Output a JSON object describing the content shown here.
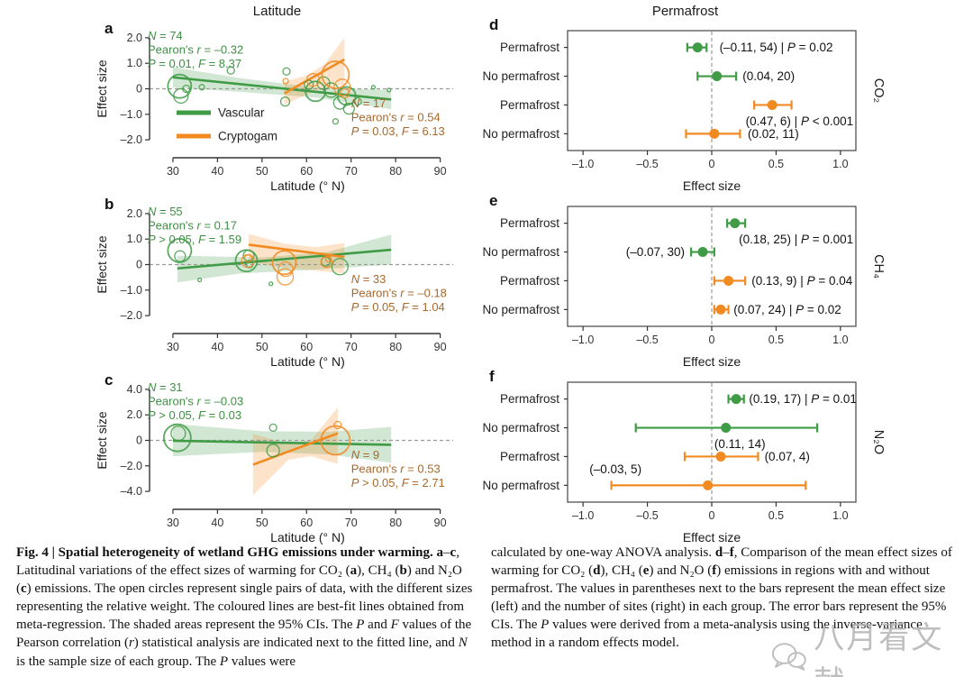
{
  "figure": {
    "column_titles": {
      "left": "Latitude",
      "right": "Permafrost"
    },
    "caption_left_html": "<b>Fig. 4 | Spatial heterogeneity of wetland GHG emissions under warming.</b> <b>a</b>–<b>c</b>, Latitudinal variations of the effect sizes of warming for CO₂ (<b>a</b>), CH₄ (<b>b</b>) and N₂O (<b>c</b>) emissions. The open circles represent single pairs of data, with the different sizes representing the relative weight. The coloured lines are best-fit lines obtained from meta-regression. The shaded areas represent the 95% CIs. The <i>P</i> and <i>F</i> values of the Pearson correlation (<i>r</i>) statistical analysis are indicated next to the fitted line, and <i>N</i> is the sample size of each group. The <i>P</i> values were",
    "caption_right_html": "calculated by one-way ANOVA analysis. <b>d</b>–<b>f</b>, Comparison of the mean effect sizes of warming for CO₂ (<b>d</b>), CH₄ (<b>e</b>) and N₂O (<b>f</b>) emissions in regions with and without permafrost. The values in parentheses next to the bars represent the mean effect size (left) and the number of sites (right) in each group. The error bars represent the 95% CIs. The <i>P</i> values were derived from a meta-analysis using the inverse-variance method in a random effects model.",
    "watermark_text": "八月看文献"
  },
  "colors": {
    "green": "#3f9b45",
    "orange": "#f28a22",
    "stats_green": "#3f8f44",
    "stats_orange": "#a8682b",
    "axis": "#333333",
    "dashed": "#9a9a9a",
    "text": "#1a1a1a",
    "band_opacity": 0.24
  },
  "chart_data": [
    {
      "id": "a",
      "type": "scatter",
      "panel_label": "a",
      "xlabel": "Latitude (° N)",
      "ylabel": "Effect size",
      "xlim": [
        28.8,
        91.7
      ],
      "ylim": [
        -2.35,
        2.35
      ],
      "xticks": [
        [
          30,
          "30"
        ],
        [
          40,
          "40"
        ],
        [
          50,
          "50"
        ],
        [
          60,
          "60"
        ],
        [
          70,
          "70"
        ],
        [
          80,
          "80"
        ],
        [
          90,
          "90"
        ]
      ],
      "yticks": [
        [
          2,
          "2.0"
        ],
        [
          1,
          "1.0"
        ],
        [
          0,
          "0"
        ],
        [
          -1,
          "–1.0"
        ],
        [
          -2,
          "–2.0"
        ]
      ],
      "series": [
        {
          "name": "Vascular",
          "color": "green",
          "line": [
            [
              30,
              0.45
            ],
            [
              79,
              -0.42
            ]
          ],
          "band": [
            [
              30,
              0.85
            ],
            [
              45,
              0.42
            ],
            [
              62,
              0.05
            ],
            [
              79,
              -0.05
            ],
            [
              79,
              -0.8
            ],
            [
              62,
              -0.34
            ],
            [
              45,
              -0.12
            ],
            [
              30,
              0.05
            ]
          ],
          "points": [
            [
              31.5,
              0.1,
              13
            ],
            [
              31.8,
              -0.28,
              8
            ],
            [
              33,
              0,
              4
            ],
            [
              36.5,
              0.06,
              3
            ],
            [
              43,
              0.72,
              4
            ],
            [
              55.5,
              0.68,
              4
            ],
            [
              55.2,
              -0.5,
              5
            ],
            [
              60.5,
              0.16,
              5
            ],
            [
              62,
              -0.1,
              11
            ],
            [
              63.8,
              0.22,
              7
            ],
            [
              65.5,
              -0.05,
              8
            ],
            [
              66.5,
              -1.28,
              3
            ],
            [
              67.5,
              -0.55,
              7
            ],
            [
              69,
              -0.28,
              10
            ],
            [
              69.5,
              -0.78,
              6
            ],
            [
              71.5,
              -0.5,
              4
            ],
            [
              75,
              0.06,
              2
            ],
            [
              78.5,
              -0.05,
              2
            ]
          ]
        },
        {
          "name": "Cryptogam",
          "color": "orange",
          "line": [
            [
              55,
              -0.18
            ],
            [
              68.5,
              1.15
            ]
          ],
          "band": [
            [
              55,
              0.28
            ],
            [
              60,
              0.52
            ],
            [
              64,
              0.95
            ],
            [
              68.5,
              2.0
            ],
            [
              68.5,
              0.18
            ],
            [
              62,
              -0.08
            ],
            [
              55,
              -0.62
            ]
          ],
          "points": [
            [
              61.5,
              0.35,
              7
            ],
            [
              66.5,
              0.55,
              15
            ],
            [
              68,
              0.06,
              9
            ],
            [
              68.6,
              -0.18,
              5
            ],
            [
              55.3,
              0.3,
              3
            ]
          ]
        }
      ],
      "stats": [
        {
          "color": "stats_green",
          "pos": "top-left",
          "lines": [
            "N = 74",
            "Pearon's r = –0.32",
            "P = 0.01, F = 8.37"
          ]
        },
        {
          "color": "stats_orange",
          "pos": "bottom-right",
          "lines": [
            "N = 17",
            "Pearon's r = 0.54",
            "P = 0.03, F = 6.13"
          ]
        }
      ],
      "legend": {
        "items": [
          {
            "label": "Vascular",
            "color": "green"
          },
          {
            "label": "Cryptogam",
            "color": "orange"
          }
        ]
      }
    },
    {
      "id": "b",
      "type": "scatter",
      "panel_label": "b",
      "xlabel": "Latitude (° N)",
      "ylabel": "Effect size",
      "xlim": [
        28.8,
        91.7
      ],
      "ylim": [
        -2.35,
        2.35
      ],
      "xticks": [
        [
          30,
          "30"
        ],
        [
          40,
          "40"
        ],
        [
          50,
          "50"
        ],
        [
          60,
          "60"
        ],
        [
          70,
          "70"
        ],
        [
          80,
          "80"
        ],
        [
          90,
          "90"
        ]
      ],
      "yticks": [
        [
          2,
          "2.0"
        ],
        [
          1,
          "1.0"
        ],
        [
          0,
          "0"
        ],
        [
          -1,
          "–1.0"
        ],
        [
          -2,
          "–2.0"
        ]
      ],
      "series": [
        {
          "name": "Vascular",
          "color": "green",
          "line": [
            [
              31,
              -0.15
            ],
            [
              79,
              0.58
            ]
          ],
          "band": [
            [
              31,
              0.35
            ],
            [
              50,
              0.28
            ],
            [
              65,
              0.5
            ],
            [
              79,
              1.18
            ],
            [
              79,
              0
            ],
            [
              60,
              -0.22
            ],
            [
              45,
              -0.35
            ],
            [
              31,
              -0.7
            ]
          ],
          "points": [
            [
              31.5,
              0.55,
              13
            ],
            [
              31.6,
              0.33,
              6
            ],
            [
              46.5,
              0.15,
              12
            ],
            [
              47,
              0.35,
              6
            ],
            [
              47.2,
              0.02,
              4
            ],
            [
              64.3,
              0.12,
              5
            ],
            [
              67.5,
              -0.08,
              9
            ],
            [
              36,
              -0.6,
              2
            ],
            [
              52,
              -0.75,
              2
            ]
          ]
        },
        {
          "name": "Cryptogam",
          "color": "orange",
          "line": [
            [
              47,
              0.78
            ],
            [
              68.5,
              0.3
            ]
          ],
          "band": [
            [
              47,
              1.2
            ],
            [
              55,
              0.82
            ],
            [
              62,
              0.68
            ],
            [
              68.5,
              0.85
            ],
            [
              68.5,
              -0.35
            ],
            [
              60,
              -0.2
            ],
            [
              52,
              -0.06
            ],
            [
              47,
              0.15
            ]
          ],
          "points": [
            [
              46.8,
              0.14,
              7
            ],
            [
              46.9,
              0.24,
              4
            ],
            [
              55,
              0.08,
              13
            ],
            [
              55.3,
              -0.18,
              8
            ],
            [
              55.2,
              -0.48,
              9
            ],
            [
              64.5,
              0.1,
              6
            ],
            [
              64.9,
              0.22,
              3
            ]
          ]
        }
      ],
      "stats": [
        {
          "color": "stats_green",
          "pos": "top-left",
          "lines": [
            "N = 55",
            "Pearon's r = 0.17",
            "P > 0.05, F = 1.59"
          ]
        },
        {
          "color": "stats_orange",
          "pos": "bottom-right",
          "lines": [
            "N = 33",
            "Pearon's r = –0.18",
            "P = 0.05, F = 1.04"
          ]
        }
      ]
    },
    {
      "id": "c",
      "type": "scatter",
      "panel_label": "c",
      "xlabel": "Latitude (° N)",
      "ylabel": "Effect size",
      "xlim": [
        28.8,
        91.7
      ],
      "ylim": [
        -4.7,
        4.7
      ],
      "xticks": [
        [
          30,
          "30"
        ],
        [
          40,
          "40"
        ],
        [
          50,
          "50"
        ],
        [
          60,
          "60"
        ],
        [
          70,
          "70"
        ],
        [
          80,
          "80"
        ],
        [
          90,
          "90"
        ]
      ],
      "yticks": [
        [
          4,
          "4.0"
        ],
        [
          2,
          "2.0"
        ],
        [
          0,
          "0"
        ],
        [
          -2,
          "–2.0"
        ],
        [
          -4,
          "–4.0"
        ]
      ],
      "series": [
        {
          "name": "Vascular",
          "color": "green",
          "line": [
            [
              30,
              -0.03
            ],
            [
              79,
              -0.35
            ]
          ],
          "band": [
            [
              30,
              1.3
            ],
            [
              50,
              0.72
            ],
            [
              65,
              0.68
            ],
            [
              79,
              1.05
            ],
            [
              79,
              -1.75
            ],
            [
              65,
              -1.1
            ],
            [
              50,
              -0.9
            ],
            [
              30,
              -1.25
            ]
          ],
          "points": [
            [
              31,
              0.2,
              15
            ],
            [
              31.2,
              0.55,
              8
            ],
            [
              52.5,
              1.0,
              4
            ],
            [
              52.5,
              -0.8,
              7
            ]
          ]
        },
        {
          "name": "Cryptogam",
          "color": "orange",
          "line": [
            [
              48,
              -1.9
            ],
            [
              67,
              0.55
            ]
          ],
          "band": [
            [
              48,
              0.5
            ],
            [
              56,
              -0.3
            ],
            [
              61,
              0
            ],
            [
              67,
              2.6
            ],
            [
              67,
              -1.85
            ],
            [
              61,
              -1.25
            ],
            [
              56,
              -1.5
            ],
            [
              48,
              -4.3
            ]
          ],
          "points": [
            [
              66.5,
              0,
              16
            ],
            [
              67,
              1.2,
              4
            ]
          ]
        }
      ],
      "stats": [
        {
          "color": "stats_green",
          "pos": "top-left",
          "lines": [
            "N = 31",
            "Pearon's r = –0.03",
            "P > 0.05, F = 0.03"
          ]
        },
        {
          "color": "stats_orange",
          "pos": "bottom-right",
          "lines": [
            "N = 9",
            "Pearon's r = 0.53",
            "P > 0.05, F = 2.71"
          ]
        }
      ]
    },
    {
      "id": "d",
      "type": "forest",
      "panel_label": "d",
      "gas_label": "CO₂",
      "xlabel": "Effect size",
      "xlim": [
        -1.12,
        1.12
      ],
      "xticks": [
        [
          -1,
          "–1.0"
        ],
        [
          -0.5,
          "–0.5"
        ],
        [
          0,
          "0"
        ],
        [
          0.5,
          "0.5"
        ],
        [
          1,
          "1.0"
        ]
      ],
      "rows": [
        {
          "label": "Permafrost",
          "color": "green",
          "mean": -0.11,
          "lo": -0.19,
          "hi": -0.04,
          "annotation": "(–0.11, 54) | P = 0.02",
          "ann_x": 0.06,
          "ann_anchor": "start",
          "ann_dy": 0
        },
        {
          "label": "No permafrost",
          "color": "green",
          "mean": 0.04,
          "lo": -0.11,
          "hi": 0.19,
          "annotation": "(0.04, 20)",
          "ann_x": 0.24,
          "ann_anchor": "start",
          "ann_dy": 0
        },
        {
          "label": "Permafrost",
          "color": "orange",
          "mean": 0.47,
          "lo": 0.33,
          "hi": 0.62,
          "annotation": "(0.47, 6) | P < 0.001",
          "ann_x": 1.1,
          "ann_anchor": "end",
          "ann_dy": 18
        },
        {
          "label": "No permafrost",
          "color": "orange",
          "mean": 0.02,
          "lo": -0.2,
          "hi": 0.22,
          "annotation": "(0.02, 11)",
          "ann_x": 0.28,
          "ann_anchor": "start",
          "ann_dy": 0
        }
      ]
    },
    {
      "id": "e",
      "type": "forest",
      "panel_label": "e",
      "gas_label": "CH₄",
      "xlabel": "Effect size",
      "xlim": [
        -1.12,
        1.12
      ],
      "xticks": [
        [
          -1,
          "–1.0"
        ],
        [
          -0.5,
          "–0.5"
        ],
        [
          0,
          "0"
        ],
        [
          0.5,
          "0.5"
        ],
        [
          1,
          "1.0"
        ]
      ],
      "rows": [
        {
          "label": "Permafrost",
          "color": "green",
          "mean": 0.18,
          "lo": 0.12,
          "hi": 0.26,
          "annotation": "(0.18, 25) | P = 0.001",
          "ann_x": 1.1,
          "ann_anchor": "end",
          "ann_dy": 18
        },
        {
          "label": "No permafrost",
          "color": "green",
          "mean": -0.07,
          "lo": -0.16,
          "hi": 0.02,
          "annotation": "(–0.07, 30)",
          "ann_x": -0.21,
          "ann_anchor": "end",
          "ann_dy": 0
        },
        {
          "label": "Permafrost",
          "color": "orange",
          "mean": 0.13,
          "lo": 0.02,
          "hi": 0.26,
          "annotation": "(0.13, 9) | P = 0.04",
          "ann_x": 0.31,
          "ann_anchor": "start",
          "ann_dy": 0
        },
        {
          "label": "No permafrost",
          "color": "orange",
          "mean": 0.07,
          "lo": 0.02,
          "hi": 0.13,
          "annotation": "(0.07, 24) | P = 0.02",
          "ann_x": 0.17,
          "ann_anchor": "start",
          "ann_dy": 0
        }
      ]
    },
    {
      "id": "f",
      "type": "forest",
      "panel_label": "f",
      "gas_label": "N₂O",
      "xlabel": "Effect size",
      "xlim": [
        -1.12,
        1.12
      ],
      "xticks": [
        [
          -1,
          "–1.0"
        ],
        [
          -0.5,
          "–0.5"
        ],
        [
          0,
          "0"
        ],
        [
          0.5,
          "0.5"
        ],
        [
          1,
          "1.0"
        ]
      ],
      "rows": [
        {
          "label": "Permafrost",
          "color": "green",
          "mean": 0.19,
          "lo": 0.13,
          "hi": 0.25,
          "annotation": "(0.19, 17) | P = 0.01",
          "ann_x": 0.29,
          "ann_anchor": "start",
          "ann_dy": 0
        },
        {
          "label": "No permafrost",
          "color": "green",
          "mean": 0.11,
          "lo": -0.59,
          "hi": 0.82,
          "annotation": "(0.11, 14)",
          "ann_x": 0.02,
          "ann_anchor": "start",
          "ann_dy": 18
        },
        {
          "label": "Permafrost",
          "color": "orange",
          "mean": 0.07,
          "lo": -0.21,
          "hi": 0.36,
          "annotation": "(0.07, 4)",
          "ann_x": 0.41,
          "ann_anchor": "start",
          "ann_dy": 0
        },
        {
          "label": "No permafrost",
          "color": "orange",
          "mean": -0.03,
          "lo": -0.78,
          "hi": 0.73,
          "annotation": "(–0.03, 5)",
          "ann_x": -0.95,
          "ann_anchor": "start",
          "ann_dy": -18
        }
      ]
    }
  ]
}
